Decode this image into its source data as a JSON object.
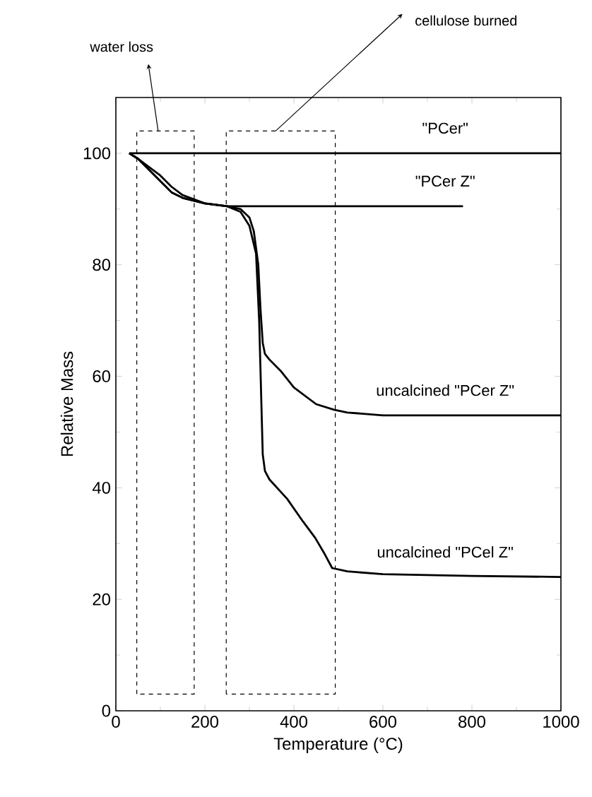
{
  "chart_data": {
    "type": "line",
    "xlabel": "Temperature (°C)",
    "ylabel": "Relative  Mass",
    "xlim": [
      0,
      1000
    ],
    "ylim": [
      0,
      110
    ],
    "xticks": [
      0,
      200,
      400,
      600,
      800,
      1000
    ],
    "yticks": [
      0,
      20,
      40,
      60,
      80,
      100
    ],
    "marker": "none",
    "line_style": "solid",
    "series": [
      {
        "name": "\"PCer\"",
        "color": "#000000",
        "x": [
          30,
          60,
          100,
          200,
          400,
          600,
          840,
          1000
        ],
        "values": [
          100,
          100,
          100,
          100,
          100,
          100,
          100,
          100
        ]
      },
      {
        "name": "\"PCer Z\"",
        "color": "#000000",
        "x": [
          30,
          50,
          75,
          100,
          125,
          150,
          175,
          200,
          250,
          400,
          600,
          780
        ],
        "values": [
          100,
          99,
          97,
          95,
          93,
          92,
          91.5,
          91,
          90.5,
          90.5,
          90.5,
          90.5
        ]
      },
      {
        "name": "uncalcined \"PCer Z\"",
        "color": "#000000",
        "x": [
          30,
          50,
          75,
          100,
          125,
          150,
          200,
          250,
          280,
          300,
          310,
          320,
          325,
          330,
          335,
          345,
          370,
          400,
          450,
          490,
          520,
          600,
          800,
          1000
        ],
        "values": [
          100,
          99,
          97.5,
          96,
          94,
          92.5,
          91,
          90.5,
          90,
          88.5,
          86,
          80,
          72,
          66,
          64,
          63,
          61,
          58,
          55,
          54,
          53.5,
          53,
          53,
          53
        ]
      },
      {
        "name": "uncalcined \"PCel Z\"",
        "color": "#000000",
        "x": [
          30,
          50,
          75,
          100,
          125,
          150,
          200,
          250,
          280,
          300,
          315,
          322,
          327,
          330,
          335,
          345,
          385,
          420,
          448,
          470,
          486,
          520,
          600,
          800,
          1000
        ],
        "values": [
          100,
          99,
          97,
          95,
          93,
          92,
          91,
          90.5,
          89.5,
          87,
          82,
          70,
          55,
          46,
          43,
          41.5,
          38,
          34,
          31,
          28,
          25.6,
          25,
          24.5,
          24.2,
          24
        ]
      }
    ],
    "annotations": [
      "water loss",
      "cellulose burned"
    ]
  }
}
